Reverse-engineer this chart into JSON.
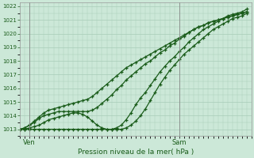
{
  "title": "Pression niveau de la mer( hPa )",
  "xlabel_ven": "Ven",
  "xlabel_sam": "Sam",
  "background_color": "#cce8d8",
  "grid_color": "#a8ccb8",
  "line_color": "#1a5c1a",
  "vline_color": "#888888",
  "ylim": [
    1012.5,
    1022.3
  ],
  "yticks": [
    1013,
    1014,
    1015,
    1016,
    1017,
    1018,
    1019,
    1020,
    1021,
    1022
  ],
  "xlim_start": 0,
  "xlim_end": 48,
  "ven_x": 2,
  "sam_x": 33,
  "series": {
    "line1": [
      1013.0,
      1013.0,
      1013.1,
      1013.2,
      1013.3,
      1013.5,
      1013.7,
      1013.8,
      1013.9,
      1014.0,
      1014.1,
      1014.2,
      1014.2,
      1014.1,
      1013.9,
      1013.6,
      1013.3,
      1013.1,
      1013.0,
      1013.0,
      1013.1,
      1013.3,
      1013.7,
      1014.2,
      1014.8,
      1015.3,
      1015.7,
      1016.2,
      1016.7,
      1017.2,
      1017.6,
      1018.0,
      1018.3,
      1018.7,
      1019.0,
      1019.4,
      1019.7,
      1020.0,
      1020.3,
      1020.5,
      1020.7,
      1020.9,
      1021.1,
      1021.3,
      1021.4,
      1021.5,
      1021.6,
      1021.8
    ],
    "line2": [
      1013.0,
      1013.1,
      1013.3,
      1013.5,
      1013.8,
      1014.0,
      1014.1,
      1014.2,
      1014.3,
      1014.3,
      1014.3,
      1014.3,
      1014.3,
      1014.3,
      1014.3,
      1014.4,
      1014.6,
      1014.9,
      1015.2,
      1015.5,
      1015.9,
      1016.2,
      1016.6,
      1016.9,
      1017.2,
      1017.5,
      1017.8,
      1018.0,
      1018.3,
      1018.6,
      1018.8,
      1019.1,
      1019.3,
      1019.6,
      1019.8,
      1020.1,
      1020.3,
      1020.5,
      1020.6,
      1020.8,
      1020.9,
      1021.0,
      1021.1,
      1021.2,
      1021.3,
      1021.4,
      1021.5,
      1021.6
    ],
    "line3": [
      1013.0,
      1013.1,
      1013.3,
      1013.6,
      1013.9,
      1014.2,
      1014.4,
      1014.5,
      1014.6,
      1014.7,
      1014.8,
      1014.9,
      1015.0,
      1015.1,
      1015.2,
      1015.4,
      1015.7,
      1016.0,
      1016.3,
      1016.6,
      1016.9,
      1017.2,
      1017.5,
      1017.7,
      1017.9,
      1018.1,
      1018.3,
      1018.5,
      1018.7,
      1018.9,
      1019.1,
      1019.3,
      1019.5,
      1019.7,
      1019.9,
      1020.1,
      1020.3,
      1020.5,
      1020.6,
      1020.8,
      1020.9,
      1021.0,
      1021.1,
      1021.2,
      1021.3,
      1021.4,
      1021.5,
      1021.6
    ],
    "line4": [
      1013.0,
      1013.0,
      1013.0,
      1013.0,
      1013.0,
      1013.0,
      1013.0,
      1013.0,
      1013.0,
      1013.0,
      1013.0,
      1013.0,
      1013.0,
      1013.0,
      1013.0,
      1013.0,
      1013.0,
      1013.0,
      1013.0,
      1013.0,
      1013.0,
      1013.0,
      1013.1,
      1013.3,
      1013.6,
      1014.0,
      1014.5,
      1015.1,
      1015.7,
      1016.3,
      1016.8,
      1017.3,
      1017.7,
      1018.1,
      1018.5,
      1018.8,
      1019.1,
      1019.4,
      1019.7,
      1020.0,
      1020.3,
      1020.5,
      1020.7,
      1020.9,
      1021.1,
      1021.2,
      1021.3,
      1021.5
    ]
  }
}
